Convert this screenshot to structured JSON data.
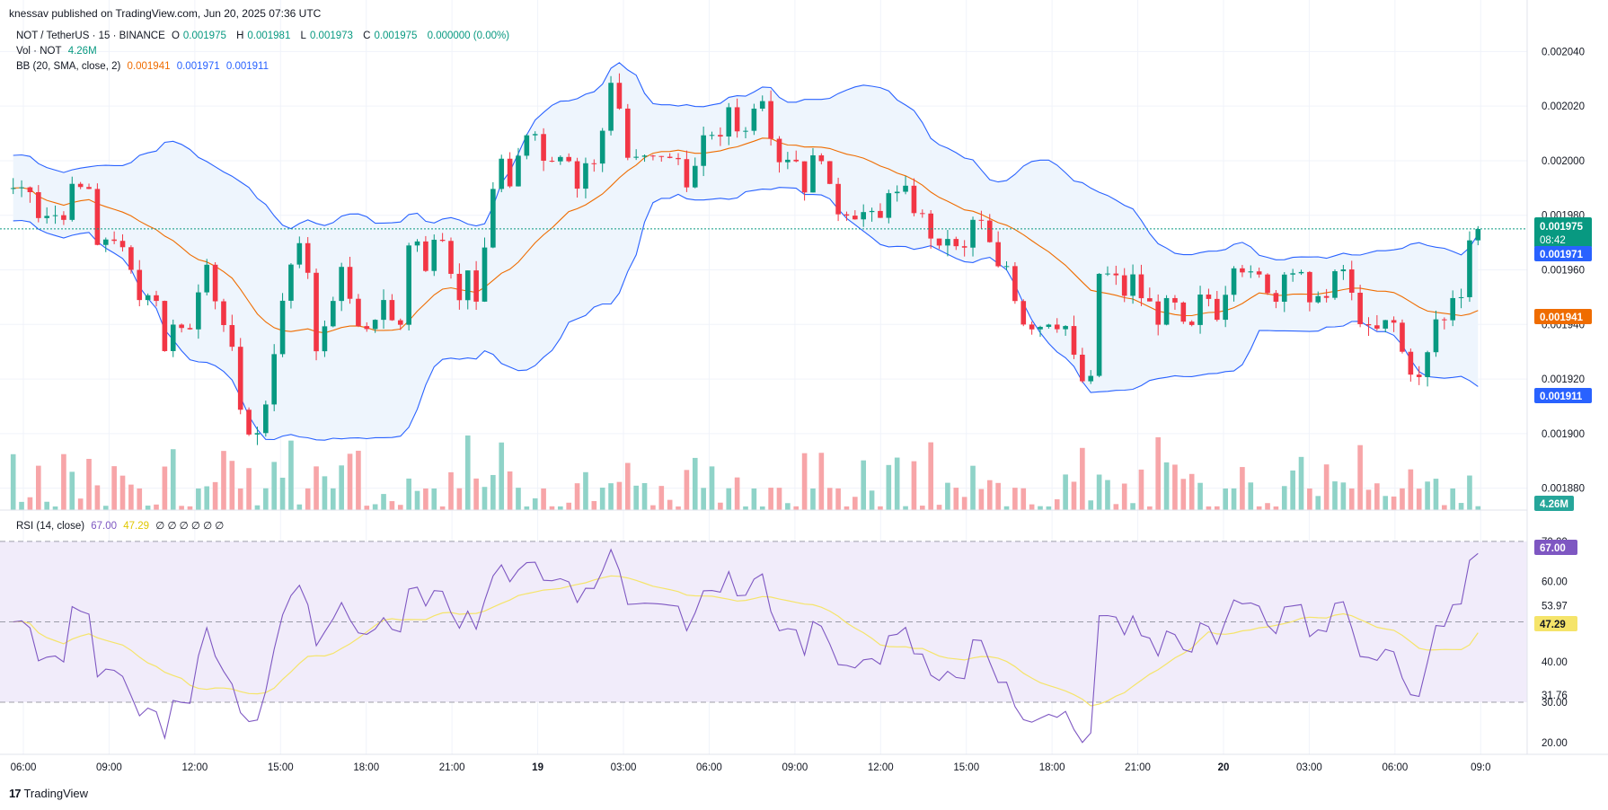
{
  "header": {
    "published": "knessav published on TradingView.com, Jun 20, 2025 07:36 UTC"
  },
  "legend": {
    "symbol": "NOT / TetherUS · 15 · BINANCE",
    "ohlc": [
      {
        "k": "O",
        "v": "0.001975"
      },
      {
        "k": "H",
        "v": "0.001981"
      },
      {
        "k": "L",
        "v": "0.001973"
      },
      {
        "k": "C",
        "v": "0.001975"
      }
    ],
    "change": "0.000000 (0.00%)",
    "vol_label": "Vol · NOT",
    "vol_value": "4.26M",
    "bb_label": "BB (20, SMA, close, 2)",
    "bb_values": [
      "0.001941",
      "0.001971",
      "0.001911"
    ],
    "rsi_label": "RSI (14, close)",
    "rsi_value": "67.00",
    "rsi_ma_value": "47.29",
    "rsi_extra": "∅ ∅ ∅ ∅ ∅ ∅"
  },
  "colors": {
    "up": "#089981",
    "down": "#f23645",
    "vol_up": "#8fd3c8",
    "vol_down": "#f7a5a8",
    "bb_basis": "#ef6c00",
    "bb_band": "#2962ff",
    "bb_fill": "#eef5fd",
    "rsi_line": "#7e57c2",
    "rsi_ma": "#f5e46a",
    "rsi_fill": "#f1ecfa"
  },
  "price_axis": {
    "ticks": [
      "0.002040",
      "0.002020",
      "0.002000",
      "0.001980",
      "0.001960",
      "0.001940",
      "0.001920",
      "0.001900",
      "0.001880"
    ],
    "last_price": "0.001975",
    "countdown": "08:42",
    "bb_upper": "0.001971",
    "bb_basis": "0.001941",
    "bb_lower": "0.001911",
    "volume_badge": "4.26M"
  },
  "rsi_axis": {
    "ticks": [
      "70.00",
      "60.00",
      "50.00",
      "40.00",
      "30.00",
      "20.00"
    ],
    "extra_labels": [
      "53.97",
      "31.76"
    ],
    "rsi_badge": "67.00",
    "ma_badge": "47.29"
  },
  "time_axis": {
    "labels": [
      "06:00",
      "09:00",
      "12:00",
      "15:00",
      "18:00",
      "21:00",
      "19",
      "03:00",
      "06:00",
      "09:00",
      "12:00",
      "15:00",
      "18:00",
      "21:00",
      "20",
      "03:00",
      "06:00",
      "09:0"
    ]
  },
  "footer": {
    "brand": "TradingView",
    "logo": "17"
  },
  "chart_data": {
    "type": "candlestick",
    "timeframe": "15",
    "price_range": [
      0.001872,
      0.002049
    ],
    "rsi_range": [
      17.5,
      74
    ],
    "grid": true,
    "closes": [
      0.00199,
      0.00199,
      0.00199,
      0.00198,
      0.00198,
      0.00198,
      0.00198,
      0.00199,
      0.00199,
      0.00199,
      0.00197,
      0.00197,
      0.00197,
      0.00197,
      0.00196,
      0.00195,
      0.00195,
      0.00195,
      0.00193,
      0.00194,
      0.00194,
      0.00194,
      0.00195,
      0.00196,
      0.00195,
      0.00194,
      0.00193,
      0.00191,
      0.0019,
      0.0019,
      0.00191,
      0.00193,
      0.00195,
      0.00196,
      0.00197,
      0.00196,
      0.00193,
      0.00194,
      0.00195,
      0.00196,
      0.00195,
      0.00194,
      0.00194,
      0.00194,
      0.00195,
      0.00194,
      0.00194,
      0.00197,
      0.00197,
      0.00196,
      0.00197,
      0.00197,
      0.00196,
      0.00195,
      0.00196,
      0.00195,
      0.00197,
      0.00199,
      0.002,
      0.00199,
      0.002,
      0.00201,
      0.00201,
      0.002,
      0.002,
      0.002,
      0.002,
      0.00199,
      0.002,
      0.002,
      0.00201,
      0.00203,
      0.00202,
      0.002,
      0.002,
      0.002,
      0.002,
      0.002,
      0.002,
      0.002,
      0.00199,
      0.002,
      0.00201,
      0.00201,
      0.00201,
      0.00202,
      0.00201,
      0.00201,
      0.00202,
      0.00202,
      0.00201,
      0.002,
      0.002,
      0.002,
      0.00199,
      0.002,
      0.002,
      0.00199,
      0.00198,
      0.00198,
      0.00198,
      0.00198,
      0.00198,
      0.00198,
      0.00199,
      0.00199,
      0.00199,
      0.00198,
      0.00198,
      0.00197,
      0.00197,
      0.00197,
      0.00197,
      0.00197,
      0.00198,
      0.00198,
      0.00197,
      0.00196,
      0.00196,
      0.00195,
      0.00194,
      0.00194,
      0.00194,
      0.00194,
      0.00194,
      0.00194,
      0.00193,
      0.00192,
      0.00192,
      0.00196,
      0.00196,
      0.00196,
      0.00195,
      0.00196,
      0.00195,
      0.00195,
      0.00194,
      0.00195,
      0.00195,
      0.00194,
      0.00194,
      0.00195,
      0.00195,
      0.00194,
      0.00195,
      0.00196,
      0.00196,
      0.00196,
      0.00196,
      0.00195,
      0.00195,
      0.00196,
      0.00196,
      0.00196,
      0.00195,
      0.00195,
      0.00195,
      0.00196,
      0.00196,
      0.00195,
      0.00194,
      0.00194,
      0.00194,
      0.00194,
      0.00194,
      0.00193,
      0.00192,
      0.00192,
      0.00193,
      0.00194,
      0.00194,
      0.00195,
      0.00195,
      0.00197,
      0.001975
    ],
    "rsi_last": 67.0,
    "rsi_ma_last": 47.29,
    "rsi_levels": [
      70,
      50,
      30
    ],
    "bollinger": {
      "basis": 0.001941,
      "upper": 0.001971,
      "lower": 0.001911
    },
    "last_volume": "4.26M"
  }
}
